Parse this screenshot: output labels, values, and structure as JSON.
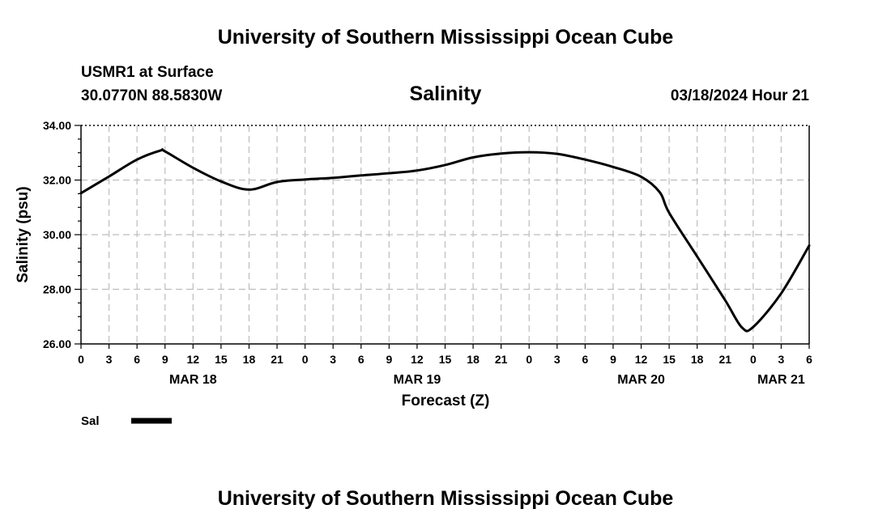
{
  "header": {
    "title": "University of Southern Mississippi Ocean Cube",
    "station": "USMR1 at Surface",
    "coords": "30.0770N  88.5830W",
    "datetime": "03/18/2024 Hour 21",
    "footer_title": "University of Southern Mississippi Ocean Cube"
  },
  "chart_data": {
    "type": "line",
    "title": "Salinity",
    "xlabel": "Forecast (Z)",
    "ylabel": "Salinity (psu)",
    "xlim": [
      0,
      78
    ],
    "ylim": [
      26,
      34
    ],
    "x_ticks": [
      0,
      3,
      6,
      9,
      12,
      15,
      18,
      21,
      24,
      27,
      30,
      33,
      36,
      39,
      42,
      45,
      48,
      51,
      54,
      57,
      60,
      63,
      66,
      69,
      72,
      75,
      78
    ],
    "x_tick_labels": [
      "0",
      "3",
      "6",
      "9",
      "12",
      "15",
      "18",
      "21",
      "0",
      "3",
      "6",
      "9",
      "12",
      "15",
      "18",
      "21",
      "0",
      "3",
      "6",
      "9",
      "12",
      "15",
      "18",
      "21",
      "0",
      "3",
      "6"
    ],
    "date_labels": [
      {
        "x": 12,
        "label": "MAR 18"
      },
      {
        "x": 36,
        "label": "MAR 19"
      },
      {
        "x": 60,
        "label": "MAR 20"
      },
      {
        "x": 75,
        "label": "MAR 21"
      }
    ],
    "y_ticks": [
      26,
      28,
      30,
      32,
      34
    ],
    "y_tick_labels": [
      "26.00",
      "28.00",
      "30.00",
      "32.00",
      "34.00"
    ],
    "legend": [
      {
        "name": "Sal",
        "style": "solid-thick-black"
      }
    ],
    "series": [
      {
        "name": "Sal",
        "x": [
          0,
          3,
          6,
          8.5,
          9,
          12,
          15,
          18,
          21,
          24,
          27,
          30,
          33,
          36,
          39,
          42,
          45,
          48,
          51,
          54,
          57,
          60,
          62,
          63,
          66,
          69,
          70.8,
          72,
          75,
          78
        ],
        "y": [
          31.52,
          32.13,
          32.75,
          33.08,
          33.05,
          32.45,
          31.95,
          31.65,
          31.93,
          32.02,
          32.08,
          32.17,
          32.25,
          32.35,
          32.55,
          32.83,
          32.97,
          33.02,
          32.96,
          32.75,
          32.48,
          32.12,
          31.55,
          30.8,
          29.2,
          27.6,
          26.6,
          26.62,
          27.85,
          29.6
        ]
      }
    ]
  }
}
